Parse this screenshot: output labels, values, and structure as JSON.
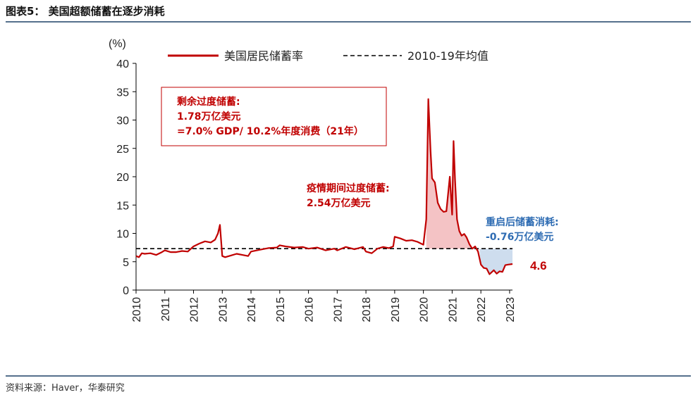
{
  "figure_title": "图表5： 美国超额储蓄在逐步消耗",
  "source": "资料来源：Haver，华泰研究",
  "colors": {
    "line": "#c00000",
    "dashed": "#000000",
    "excess_fill": "#f2b8bb",
    "deficit_fill": "#c9d9ec",
    "red_text": "#c00000",
    "blue_text": "#2e6cb3",
    "rule": "#55708c"
  },
  "chart_data": {
    "type": "line",
    "ylabel": "(%)",
    "ylim": [
      0,
      40
    ],
    "yticks": [
      "0",
      "5",
      "10",
      "15",
      "20",
      "25",
      "30",
      "35",
      "40"
    ],
    "xlim": [
      2010,
      2023.1
    ],
    "xticks": [
      "2010",
      "2011",
      "2012",
      "2013",
      "2014",
      "2015",
      "2016",
      "2017",
      "2018",
      "2019",
      "2020",
      "2021",
      "2022",
      "2023"
    ],
    "legend": {
      "position": "top",
      "line_label": "美国居民储蓄率",
      "avg_label": "2010-19年均值"
    },
    "average_2010_2019": 7.3,
    "series": [
      {
        "name": "美国居民储蓄率",
        "x": [
          2010.0,
          2010.1,
          2010.2,
          2010.3,
          2010.5,
          2010.7,
          2010.9,
          2011.0,
          2011.2,
          2011.4,
          2011.6,
          2011.8,
          2012.0,
          2012.2,
          2012.4,
          2012.6,
          2012.75,
          2012.85,
          2012.92,
          2013.0,
          2013.1,
          2013.3,
          2013.5,
          2013.7,
          2013.9,
          2014.0,
          2014.3,
          2014.6,
          2014.9,
          2015.0,
          2015.2,
          2015.5,
          2015.8,
          2016.0,
          2016.3,
          2016.6,
          2016.9,
          2017.0,
          2017.3,
          2017.6,
          2017.9,
          2018.0,
          2018.2,
          2018.4,
          2018.6,
          2018.8,
          2018.95,
          2019.0,
          2019.2,
          2019.4,
          2019.6,
          2019.8,
          2020.0,
          2020.1,
          2020.17,
          2020.25,
          2020.3,
          2020.4,
          2020.5,
          2020.6,
          2020.7,
          2020.8,
          2020.92,
          2021.0,
          2021.05,
          2021.1,
          2021.17,
          2021.25,
          2021.33,
          2021.42,
          2021.5,
          2021.6,
          2021.7,
          2021.8,
          2021.9,
          2022.0,
          2022.1,
          2022.2,
          2022.3,
          2022.45,
          2022.55,
          2022.65,
          2022.75,
          2022.85,
          2022.95,
          2023.1
        ],
        "y": [
          6.0,
          5.8,
          6.5,
          6.4,
          6.5,
          6.2,
          6.7,
          7.0,
          6.7,
          6.7,
          6.9,
          6.8,
          7.7,
          8.2,
          8.6,
          8.4,
          8.9,
          10.0,
          11.5,
          6.0,
          5.8,
          6.1,
          6.4,
          6.2,
          6.0,
          6.8,
          7.1,
          7.4,
          7.5,
          7.9,
          7.7,
          7.5,
          7.6,
          7.3,
          7.5,
          7.0,
          7.3,
          7.0,
          7.6,
          7.2,
          7.6,
          6.8,
          6.5,
          7.3,
          7.6,
          7.4,
          7.7,
          9.4,
          9.1,
          8.7,
          8.8,
          8.5,
          8.0,
          12.5,
          33.7,
          24.5,
          19.7,
          19.0,
          15.4,
          14.3,
          13.8,
          13.9,
          20.0,
          13.3,
          26.3,
          19.5,
          12.5,
          10.4,
          9.6,
          9.9,
          9.3,
          8.1,
          7.3,
          7.7,
          6.8,
          4.5,
          3.9,
          3.8,
          2.8,
          3.5,
          2.9,
          3.3,
          3.2,
          4.4,
          4.5,
          4.6
        ]
      }
    ],
    "annotations": {
      "box_lines": [
        "剩余过度储蓄:",
        "1.78万亿美元",
        "=7.0% GDP/ 10.2%年度消费（21年）"
      ],
      "pandemic_lines": [
        "疫情期间过度储蓄:",
        "2.54万亿美元"
      ],
      "reopen_lines": [
        "重启后储蓄消耗:",
        "-0.76万亿美元"
      ],
      "last_value": "4.6"
    }
  }
}
